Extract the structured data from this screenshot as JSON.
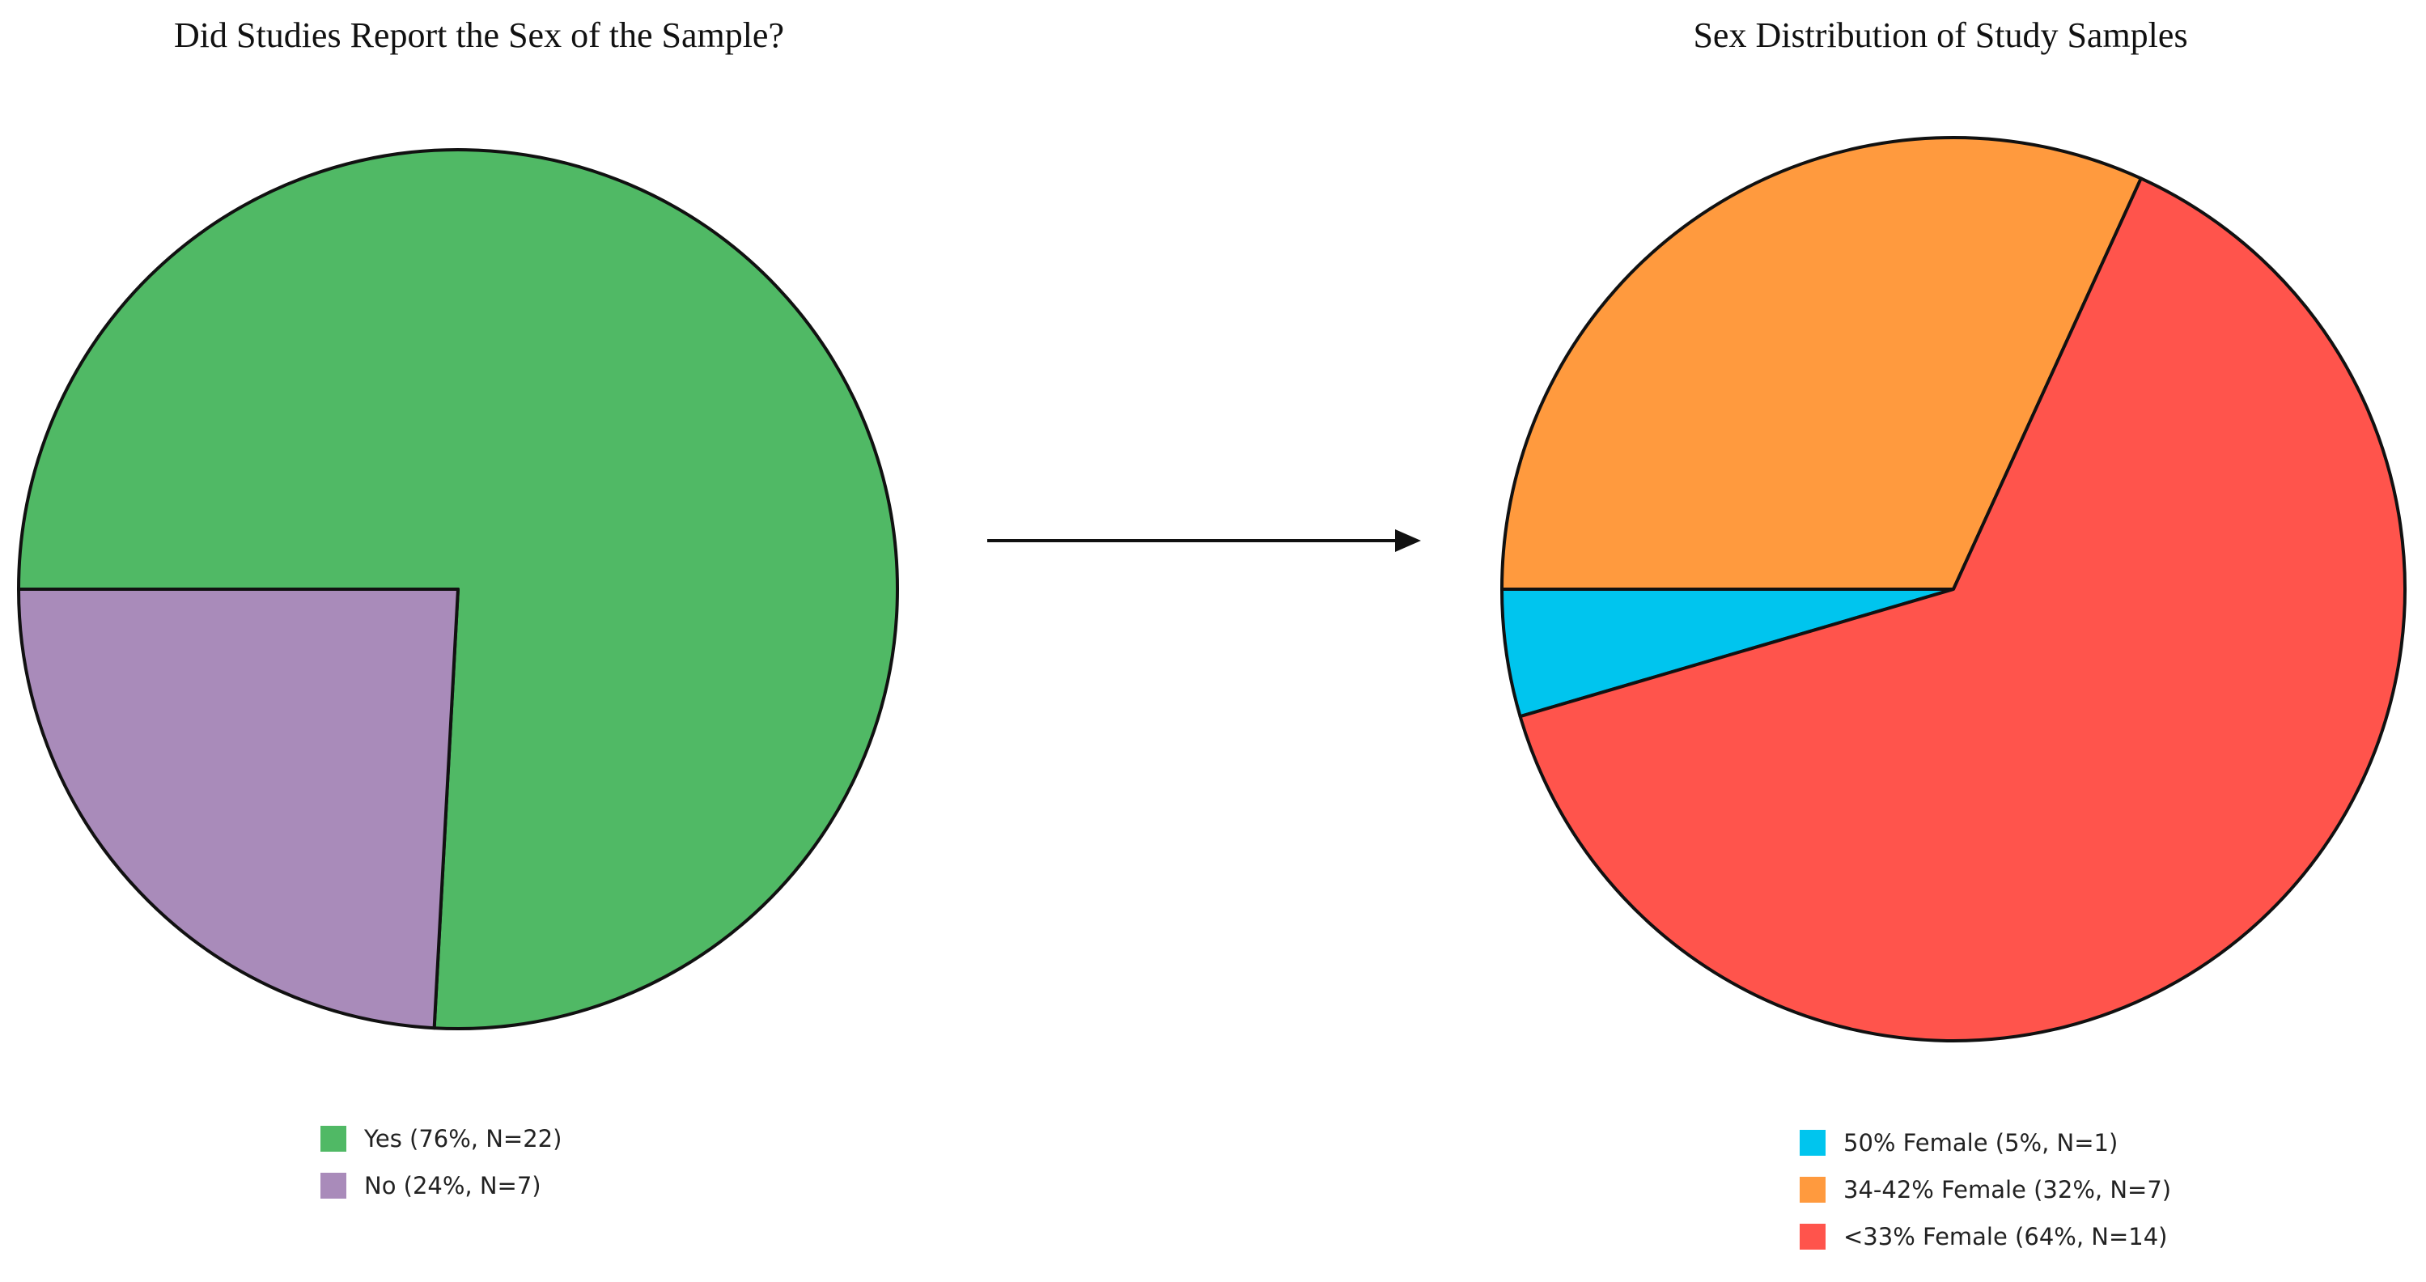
{
  "chart_data": [
    {
      "type": "pie",
      "title": "Did Studies Report the Sex of the Sample?",
      "slices": [
        {
          "label": "Yes (76%, N=22)",
          "value": 22,
          "percent": 76,
          "color": "#50B965"
        },
        {
          "label": "No (24%, N=7)",
          "value": 7,
          "percent": 24,
          "color": "#A98BBA"
        }
      ],
      "legend_position": "bottom"
    },
    {
      "type": "pie",
      "title": "Sex Distribution of Study Samples",
      "slices": [
        {
          "label": "50% Female (5%, N=1)",
          "value": 1,
          "percent": 5,
          "color": "#00C5EE"
        },
        {
          "label": "34-42% Female (32%, N=7)",
          "value": 7,
          "percent": 32,
          "color": "#FF9A3E"
        },
        {
          "label": "<33% Female (64%, N=14)",
          "value": 14,
          "percent": 64,
          "color": "#FF544C"
        }
      ],
      "legend_position": "bottom"
    }
  ],
  "connector": {
    "type": "arrow",
    "direction": "right",
    "color": "#111111"
  }
}
